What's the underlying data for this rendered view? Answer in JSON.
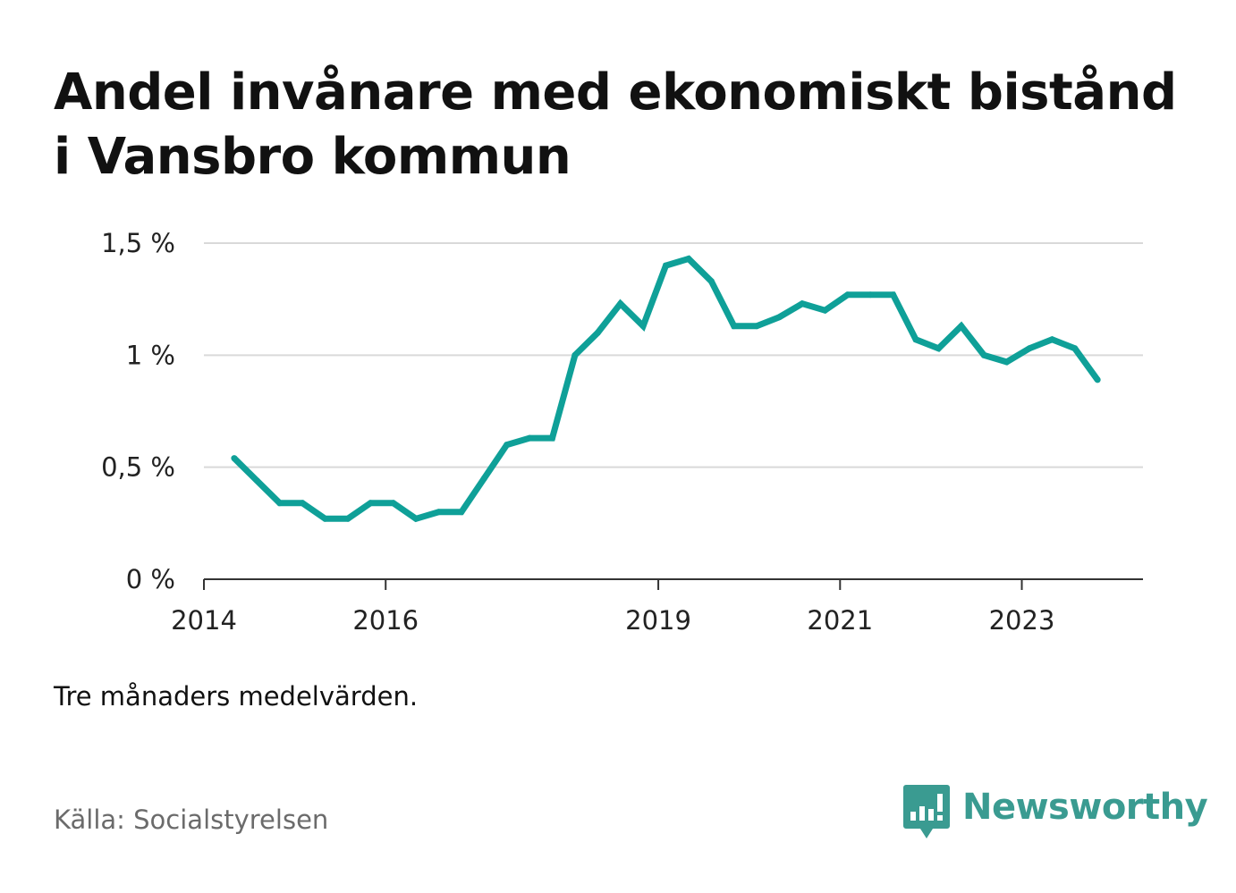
{
  "title": "Andel invånare med ekonomiskt bistånd i Vansbro kommun",
  "note": "Tre månaders medelvärden.",
  "source": "Källa: Socialstyrelsen",
  "brand": {
    "name": "Newsworthy",
    "icon": "bar-chart-speech-bubble-icon",
    "color": "#3a9b91"
  },
  "chart_data": {
    "type": "line",
    "series": [
      {
        "color": "#0fa098",
        "x": [
          "2014-05",
          "2014-08",
          "2014-11",
          "2015-02",
          "2015-05",
          "2015-08",
          "2015-11",
          "2016-02",
          "2016-05",
          "2016-08",
          "2016-11",
          "2017-02",
          "2017-05",
          "2017-08",
          "2017-11",
          "2018-02",
          "2018-05",
          "2018-08",
          "2018-11",
          "2019-02",
          "2019-05",
          "2019-08",
          "2019-11",
          "2020-02",
          "2020-05",
          "2020-08",
          "2020-11",
          "2021-02",
          "2021-05",
          "2021-08",
          "2021-11",
          "2022-02",
          "2022-05",
          "2022-08",
          "2022-11",
          "2023-02",
          "2023-05",
          "2023-08",
          "2023-11"
        ],
        "values": [
          0.54,
          0.44,
          0.34,
          0.34,
          0.27,
          0.27,
          0.34,
          0.34,
          0.27,
          0.3,
          0.3,
          0.45,
          0.6,
          0.63,
          0.63,
          1.0,
          1.1,
          1.23,
          1.13,
          1.4,
          1.43,
          1.33,
          1.13,
          1.13,
          1.17,
          1.23,
          1.2,
          1.27,
          1.27,
          1.27,
          1.07,
          1.03,
          1.13,
          1.0,
          0.97,
          1.03,
          1.07,
          1.03,
          0.89
        ]
      }
    ],
    "y_ticks": [
      {
        "value": 0,
        "label": "0 %"
      },
      {
        "value": 0.5,
        "label": "0,5 %"
      },
      {
        "value": 1,
        "label": "1 %"
      },
      {
        "value": 1.5,
        "label": "1,5 %"
      }
    ],
    "x_ticks": [
      {
        "value": "2014-01",
        "label": "2014"
      },
      {
        "value": "2016-01",
        "label": "2016"
      },
      {
        "value": "2019-01",
        "label": "2019"
      },
      {
        "value": "2021-01",
        "label": "2021"
      },
      {
        "value": "2023-01",
        "label": "2023"
      }
    ],
    "xlim": [
      "2014-01",
      "2024-05"
    ],
    "ylim": [
      0,
      1.5
    ],
    "grid": true,
    "legend": "none"
  }
}
